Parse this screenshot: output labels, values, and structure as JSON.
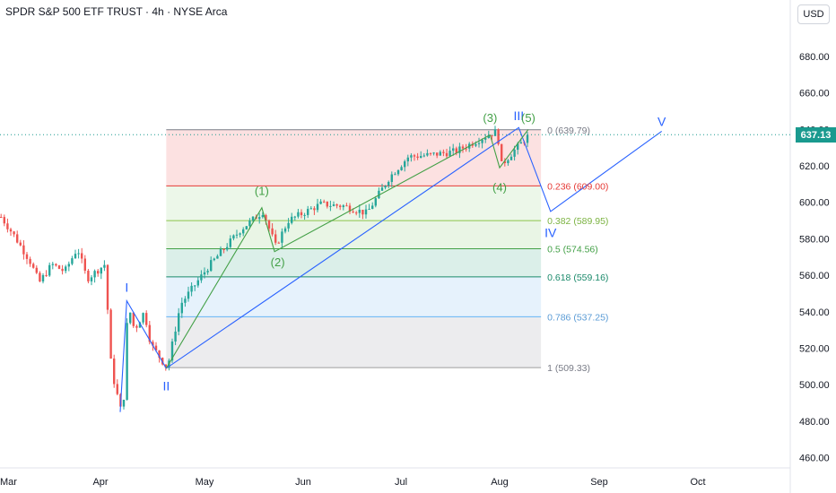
{
  "header": {
    "title": "SPDR S&P 500 ETF TRUST · 4h · NYSE Arca",
    "currency": "USD"
  },
  "last_price": "637.13",
  "colors": {
    "up": "#26a69a",
    "down": "#ef5350",
    "wave_blue": "#2962ff",
    "wave_green": "#43a047",
    "price_tag": "#1a9a8f"
  },
  "chart_data": {
    "type": "candlestick",
    "title": "SPDR S&P 500 ETF TRUST · 4h · NYSE Arca",
    "y_axis": {
      "ticks": [
        "680.00",
        "660.00",
        "640.00",
        "620.00",
        "600.00",
        "580.00",
        "560.00",
        "540.00",
        "520.00",
        "500.00",
        "480.00",
        "460.00"
      ],
      "ylim": [
        455,
        695
      ],
      "unit": "USD"
    },
    "x_axis": {
      "ticks": [
        "Mar",
        "Apr",
        "May",
        "Jun",
        "Jul",
        "Aug",
        "Sep",
        "Oct"
      ]
    },
    "price_path": [
      {
        "t": "Mar 1",
        "p": 592
      },
      {
        "t": "Mar 5",
        "p": 582
      },
      {
        "t": "Mar 10",
        "p": 568
      },
      {
        "t": "Mar 13",
        "p": 556
      },
      {
        "t": "Mar 17",
        "p": 566
      },
      {
        "t": "Mar 21",
        "p": 562
      },
      {
        "t": "Mar 25",
        "p": 575
      },
      {
        "t": "Mar 28",
        "p": 558
      },
      {
        "t": "Apr 2",
        "p": 566
      },
      {
        "t": "Apr 4",
        "p": 508
      },
      {
        "t": "Apr 7",
        "p": 485
      },
      {
        "t": "Apr 8",
        "p": 496
      },
      {
        "t": "Apr 9",
        "p": 545
      },
      {
        "t": "Apr 11",
        "p": 530
      },
      {
        "t": "Apr 14",
        "p": 540
      },
      {
        "t": "Apr 16",
        "p": 522
      },
      {
        "t": "Apr 21",
        "p": 509
      },
      {
        "t": "Apr 25",
        "p": 544
      },
      {
        "t": "May 2",
        "p": 565
      },
      {
        "t": "May 12",
        "p": 585
      },
      {
        "t": "May 19",
        "p": 595
      },
      {
        "t": "May 23",
        "p": 576
      },
      {
        "t": "May 27",
        "p": 590
      },
      {
        "t": "Jun 6",
        "p": 599
      },
      {
        "t": "Jun 13",
        "p": 598
      },
      {
        "t": "Jun 20",
        "p": 594
      },
      {
        "t": "Jun 27",
        "p": 614
      },
      {
        "t": "Jul 3",
        "p": 625
      },
      {
        "t": "Jul 10",
        "p": 626
      },
      {
        "t": "Jul 18",
        "p": 628
      },
      {
        "t": "Jul 28",
        "p": 637
      },
      {
        "t": "Jul 31",
        "p": 639
      },
      {
        "t": "Aug 1",
        "p": 620
      },
      {
        "t": "Aug 5",
        "p": 628
      },
      {
        "t": "Aug 10",
        "p": 637
      }
    ],
    "fibonacci": {
      "levels": [
        {
          "ratio": "0",
          "price": 639.79,
          "label": "0 (639.79)",
          "label_color": "#787b86",
          "line_color": "#787b86",
          "fill": "#fbd7d7"
        },
        {
          "ratio": "0.236",
          "price": 609.0,
          "label": "0.236 (609.00)",
          "label_color": "#e53935",
          "line_color": "#e53935",
          "fill": "#e6f4e1"
        },
        {
          "ratio": "0.382",
          "price": 589.95,
          "label": "0.382 (589.95)",
          "label_color": "#7cb342",
          "line_color": "#8bc34a",
          "fill": "#e2f1dc"
        },
        {
          "ratio": "0.5",
          "price": 574.56,
          "label": "0.5 (574.56)",
          "label_color": "#43a047",
          "line_color": "#43a047",
          "fill": "#cfe9e2"
        },
        {
          "ratio": "0.618",
          "price": 559.16,
          "label": "0.618 (559.16)",
          "label_color": "#1b8a6b",
          "line_color": "#1b8a6b",
          "fill": "#deeefb"
        },
        {
          "ratio": "0.786",
          "price": 537.25,
          "label": "0.786 (537.25)",
          "label_color": "#5a9bd5",
          "line_color": "#64b5f6",
          "fill": "#e6e6e8"
        },
        {
          "ratio": "1",
          "price": 509.33,
          "label": "1 (509.33)",
          "label_color": "#787b86",
          "line_color": "#9e9e9e",
          "fill": null
        }
      ],
      "x_start": "Apr 21",
      "x_end": "Aug 14"
    },
    "wave_labels": [
      {
        "text": "I",
        "t": "Apr 9",
        "p": 551,
        "color": "#2962ff",
        "size": 14
      },
      {
        "text": "II",
        "t": "Apr 21",
        "p": 497,
        "color": "#2962ff",
        "size": 14
      },
      {
        "text": "III",
        "t": "Aug 7",
        "p": 645,
        "color": "#2962ff",
        "size": 14
      },
      {
        "text": "IV",
        "t": "Aug 17",
        "p": 581,
        "color": "#2962ff",
        "size": 14
      },
      {
        "text": "V",
        "t": "Sep 20",
        "p": 642,
        "color": "#2962ff",
        "size": 14
      },
      {
        "text": "(1)",
        "t": "May 19",
        "p": 604,
        "color": "#43a047",
        "size": 13
      },
      {
        "text": "(2)",
        "t": "May 24",
        "p": 565,
        "color": "#43a047",
        "size": 13
      },
      {
        "text": "(3)",
        "t": "Jul 29",
        "p": 644,
        "color": "#43a047",
        "size": 13
      },
      {
        "text": "(4)",
        "t": "Aug 1",
        "p": 606,
        "color": "#43a047",
        "size": 13
      },
      {
        "text": "(5)",
        "t": "Aug 10",
        "p": 644,
        "color": "#43a047",
        "size": 13
      }
    ],
    "wave_lines": [
      {
        "color": "#2962ff",
        "points": [
          {
            "t": "Apr 7",
            "p": 485
          },
          {
            "t": "Apr 9",
            "p": 546
          },
          {
            "t": "Apr 21",
            "p": 509
          },
          {
            "t": "Aug 7",
            "p": 641
          },
          {
            "t": "Aug 17",
            "p": 595
          },
          {
            "t": "Sep 20",
            "p": 639
          }
        ]
      },
      {
        "color": "#43a047",
        "points": [
          {
            "t": "Apr 21",
            "p": 509
          },
          {
            "t": "May 19",
            "p": 597
          },
          {
            "t": "May 23",
            "p": 573
          },
          {
            "t": "Jul 29",
            "p": 637
          },
          {
            "t": "Aug 1",
            "p": 619
          },
          {
            "t": "Aug 10",
            "p": 640
          }
        ]
      }
    ],
    "current_price_line": 637.13
  }
}
